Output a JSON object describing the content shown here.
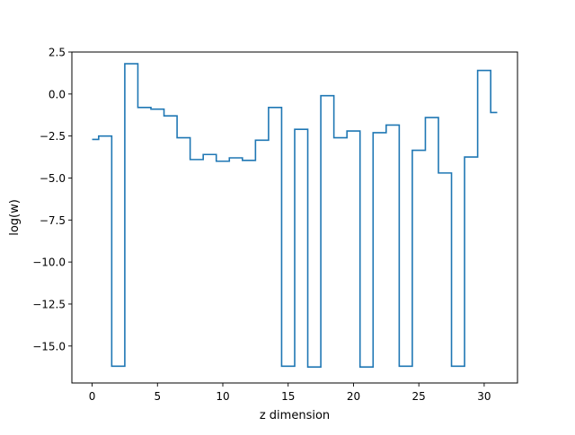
{
  "chart_data": {
    "type": "line",
    "drawstyle": "steps-mid",
    "xlabel": "z dimension",
    "ylabel": "log(w)",
    "xlim": [
      -1.55,
      32.55
    ],
    "ylim": [
      -17.2,
      2.5
    ],
    "xticks": [
      0,
      5,
      10,
      15,
      20,
      25,
      30
    ],
    "xtick_labels": [
      "0",
      "5",
      "10",
      "15",
      "20",
      "25",
      "30"
    ],
    "yticks": [
      2.5,
      0.0,
      -2.5,
      -5.0,
      -7.5,
      -10.0,
      -12.5,
      -15.0
    ],
    "ytick_labels": [
      "2.5",
      "0.0",
      "−2.5",
      "−5.0",
      "−7.5",
      "−10.0",
      "−12.5",
      "−15.0"
    ],
    "grid": false,
    "series": [
      {
        "color": "#1f77b4",
        "x": [
          0,
          1,
          2,
          3,
          4,
          5,
          6,
          7,
          8,
          9,
          10,
          11,
          12,
          13,
          14,
          15,
          16,
          17,
          18,
          19,
          20,
          21,
          22,
          23,
          24,
          25,
          26,
          27,
          28,
          29,
          30,
          31
        ],
        "y": [
          -2.7,
          -2.5,
          -16.2,
          1.8,
          -0.8,
          -0.9,
          -1.3,
          -2.6,
          -3.9,
          -3.6,
          -4.0,
          -3.8,
          -3.95,
          -2.75,
          -0.8,
          -16.2,
          -2.1,
          -16.25,
          -0.1,
          -2.6,
          -2.2,
          -16.25,
          -2.3,
          -1.85,
          -16.2,
          -3.35,
          -1.4,
          -4.7,
          -16.2,
          -3.75,
          1.4,
          -1.1
        ]
      }
    ]
  }
}
